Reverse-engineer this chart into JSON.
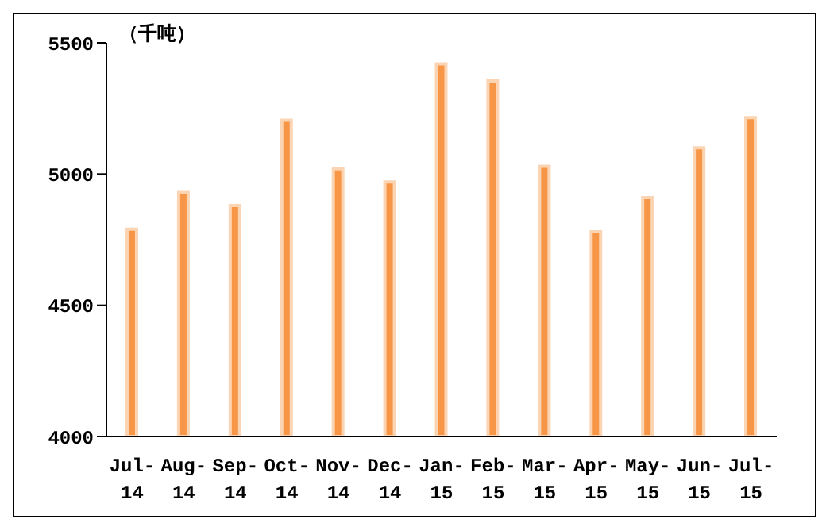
{
  "chart_data": {
    "type": "bar",
    "ylabel": "（千吨）",
    "categories": [
      "Jul-14",
      "Aug-14",
      "Sep-14",
      "Oct-14",
      "Nov-14",
      "Dec-14",
      "Jan-15",
      "Feb-15",
      "Mar-15",
      "Apr-15",
      "May-15",
      "Jun-15",
      "Jul-15"
    ],
    "values": [
      4790,
      4930,
      4880,
      5205,
      5020,
      4970,
      5420,
      5355,
      5030,
      4780,
      4910,
      5100,
      5215
    ],
    "color": "#f79646",
    "ylim": [
      4000,
      5500
    ],
    "yticks": [
      4000,
      4500,
      5000,
      5500
    ],
    "grid": false,
    "legend": false
  }
}
